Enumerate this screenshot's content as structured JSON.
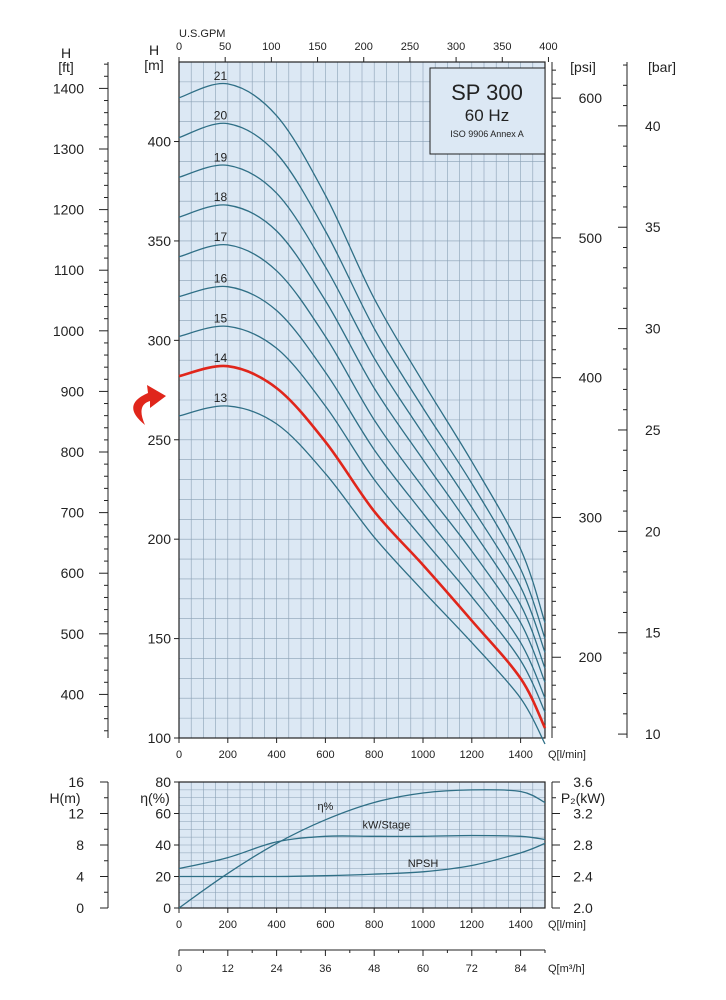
{
  "title_box": {
    "model": "SP 300",
    "frequency": "60 Hz",
    "standard": "ISO 9906 Annex A"
  },
  "arrow": {
    "target_stage": "14"
  },
  "colors": {
    "grid_bg": "#dce8f4",
    "grid_line": "#8aa0b5",
    "curve": "#2f6f86",
    "highlight": "#e0261b"
  },
  "chart_data": [
    {
      "type": "line",
      "axes": {
        "x_primary": {
          "label": "Q[l/min]",
          "range": [
            0,
            1500
          ],
          "ticks": [
            0,
            200,
            400,
            600,
            800,
            1000,
            1200,
            1400
          ]
        },
        "x_top": {
          "label": "U.S.GPM",
          "range": [
            0,
            396.3
          ],
          "ticks": [
            0,
            50,
            100,
            150,
            200,
            250,
            300,
            350,
            400
          ]
        },
        "y_m": {
          "label": "H",
          "unit": "[m]",
          "range": [
            100,
            440
          ],
          "ticks": [
            100,
            150,
            200,
            250,
            300,
            350,
            400
          ]
        },
        "y_ft": {
          "label": "H",
          "unit": "[ft]",
          "ticks": [
            400,
            500,
            600,
            700,
            800,
            900,
            1000,
            1100,
            1200,
            1300,
            1400
          ]
        },
        "y_psi": {
          "label": "[psi]",
          "ticks": [
            200,
            300,
            400,
            500,
            600
          ]
        },
        "y_bar": {
          "label": "[bar]",
          "ticks": [
            10,
            15,
            20,
            25,
            30,
            35,
            40
          ]
        }
      },
      "grid": true,
      "highlighted_series": "14",
      "x": [
        0,
        200,
        400,
        600,
        800,
        1000,
        1200,
        1400,
        1500
      ],
      "series": [
        {
          "name": "13",
          "values": [
            262,
            267,
            258,
            233,
            201,
            174,
            148,
            120,
            97
          ]
        },
        {
          "name": "14",
          "values": [
            282,
            287,
            276,
            249,
            214,
            187,
            159,
            130,
            105
          ]
        },
        {
          "name": "15",
          "values": [
            302,
            307,
            296,
            267,
            230,
            200,
            171,
            139,
            113
          ]
        },
        {
          "name": "16",
          "values": [
            322,
            327,
            315,
            284,
            245,
            213,
            182,
            148,
            120
          ]
        },
        {
          "name": "17",
          "values": [
            342,
            348,
            335,
            302,
            260,
            226,
            194,
            158,
            128
          ]
        },
        {
          "name": "18",
          "values": [
            362,
            368,
            355,
            320,
            276,
            240,
            205,
            167,
            135
          ]
        },
        {
          "name": "19",
          "values": [
            382,
            388,
            374,
            337,
            291,
            253,
            216,
            176,
            143
          ]
        },
        {
          "name": "20",
          "values": [
            402,
            409,
            394,
            355,
            306,
            266,
            228,
            185,
            150
          ]
        },
        {
          "name": "21",
          "values": [
            422,
            429,
            413,
            373,
            321,
            279,
            239,
            195,
            158
          ]
        }
      ]
    },
    {
      "type": "line",
      "axes": {
        "x_primary": {
          "label": "Q[l/min]",
          "range": [
            0,
            1500
          ],
          "ticks": [
            0,
            200,
            400,
            600,
            800,
            1000,
            1200,
            1400
          ]
        },
        "x_bottom": {
          "label": "Q[m³/h]",
          "range": [
            0,
            90
          ],
          "ticks": [
            0,
            12,
            24,
            36,
            48,
            60,
            72,
            84
          ]
        },
        "y_npsh": {
          "label": "H(m)",
          "range": [
            0,
            16
          ],
          "ticks": [
            0,
            4,
            8,
            12,
            16
          ]
        },
        "y_eff": {
          "label": "η(%)",
          "range": [
            0,
            80
          ],
          "ticks": [
            0,
            20,
            40,
            60,
            80
          ]
        },
        "y_power": {
          "label": "P₂(kW)",
          "range": [
            2.0,
            3.6
          ],
          "ticks": [
            "2.0",
            "2.4",
            "2.8",
            "3.2",
            "3.6"
          ]
        }
      },
      "grid": true,
      "x": [
        0,
        200,
        400,
        600,
        800,
        1000,
        1200,
        1400,
        1500
      ],
      "series": [
        {
          "name": "η%",
          "axis": "y_eff",
          "values": [
            0,
            22,
            41,
            56,
            67,
            73,
            75,
            74,
            67
          ]
        },
        {
          "name": "kW/Stage",
          "axis": "y_power",
          "values": [
            2.5,
            2.64,
            2.84,
            2.91,
            2.91,
            2.91,
            2.92,
            2.91,
            2.87
          ]
        },
        {
          "name": "NPSH",
          "axis": "y_npsh",
          "values": [
            4.0,
            4.0,
            4.0,
            4.1,
            4.3,
            4.6,
            5.4,
            7.0,
            8.2
          ]
        }
      ]
    }
  ]
}
